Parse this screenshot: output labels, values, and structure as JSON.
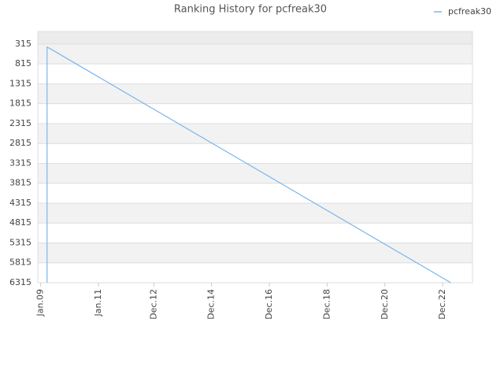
{
  "chart_data": {
    "type": "line",
    "title": "Ranking History for pcfreak30",
    "x": [
      2009.22,
      2009.22,
      2009.3,
      2023.2
    ],
    "series": [
      {
        "name": "pcfreak30",
        "color": "#7cb5ec",
        "values": [
          6315,
          394,
          420,
          6315
        ]
      }
    ],
    "xlim": [
      2008.9,
      2023.95
    ],
    "xticks": [
      {
        "value": 2009.0,
        "label": "Jan.09"
      },
      {
        "value": 2011.0,
        "label": "Jan.11"
      },
      {
        "value": 2012.917,
        "label": "Dec.12"
      },
      {
        "value": 2014.917,
        "label": "Dec.14"
      },
      {
        "value": 2016.917,
        "label": "Dec.16"
      },
      {
        "value": 2018.917,
        "label": "Dec.18"
      },
      {
        "value": 2020.917,
        "label": "Dec.20"
      },
      {
        "value": 2022.917,
        "label": "Dec.22"
      }
    ],
    "ylim": [
      6315,
      0
    ],
    "yticks": [
      315,
      815,
      1315,
      1815,
      2315,
      2815,
      3315,
      3815,
      4315,
      4815,
      5315,
      5815,
      6315
    ],
    "grid": true,
    "legend": "top-right"
  }
}
